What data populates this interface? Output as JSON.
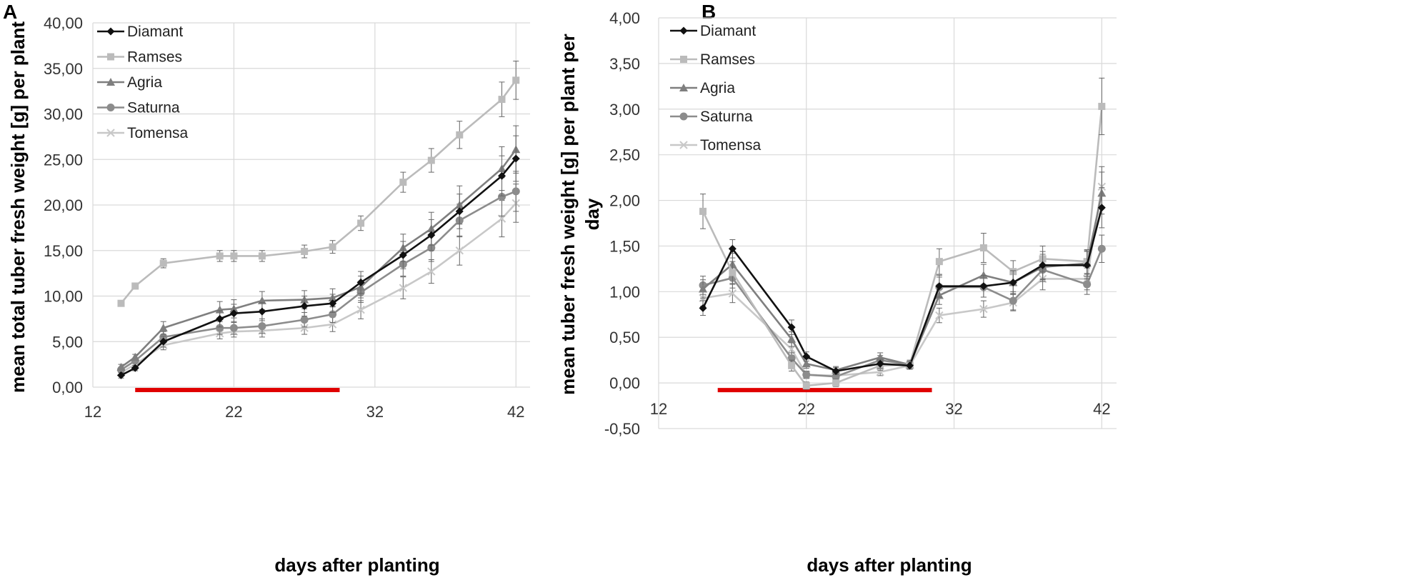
{
  "chart_data": [
    {
      "panel": "A",
      "type": "line",
      "title": "",
      "xlabel": "days after planting",
      "ylabel": "mean total tuber fresh weight [g] per plant",
      "xlim": [
        12,
        43
      ],
      "ylim": [
        0,
        40
      ],
      "xticks": [
        12,
        22,
        32,
        42
      ],
      "xtick_labels": [
        "12",
        "22",
        "32",
        "42"
      ],
      "yticks": [
        0,
        5,
        10,
        15,
        20,
        25,
        30,
        35,
        40
      ],
      "ytick_labels": [
        "0,00",
        "5,00",
        "10,00",
        "15,00",
        "20,00",
        "25,00",
        "30,00",
        "35,00",
        "40,00"
      ],
      "grid": true,
      "legend_position": "top-left",
      "bar_range": [
        15,
        29.5
      ],
      "x": [
        14,
        15,
        17,
        21,
        22,
        24,
        27,
        29,
        31,
        34,
        36,
        38,
        41,
        42
      ],
      "series": [
        {
          "name": "Diamant",
          "color": "#111111",
          "marker": "diamond",
          "values": [
            1.3,
            2.1,
            5.0,
            7.5,
            8.1,
            8.3,
            8.9,
            9.2,
            11.5,
            14.5,
            16.7,
            19.3,
            23.2,
            25.1
          ],
          "errors": [
            0.3,
            0.3,
            0.6,
            0.9,
            1.0,
            1.0,
            1.1,
            1.0,
            1.2,
            1.5,
            1.7,
            1.9,
            2.2,
            2.5
          ]
        },
        {
          "name": "Ramses",
          "color": "#bbbbbb",
          "marker": "square",
          "values": [
            9.2,
            11.1,
            13.6,
            14.4,
            14.4,
            14.4,
            14.9,
            15.4,
            18.0,
            22.5,
            24.9,
            27.7,
            31.6,
            33.7
          ],
          "errors": [
            0.3,
            0.3,
            0.5,
            0.6,
            0.6,
            0.6,
            0.7,
            0.7,
            0.8,
            1.1,
            1.3,
            1.5,
            1.9,
            2.1
          ]
        },
        {
          "name": "Agria",
          "color": "#7f7f7f",
          "marker": "triangle",
          "values": [
            2.2,
            3.3,
            6.5,
            8.5,
            8.6,
            9.5,
            9.6,
            9.8,
            11.0,
            15.3,
            17.4,
            20.0,
            24.0,
            26.1
          ],
          "errors": [
            0.3,
            0.3,
            0.7,
            0.9,
            1.0,
            1.0,
            1.0,
            1.0,
            1.2,
            1.5,
            1.8,
            2.1,
            2.4,
            2.6
          ]
        },
        {
          "name": "Saturna",
          "color": "#8c8c8c",
          "marker": "circle",
          "values": [
            1.9,
            2.9,
            5.5,
            6.5,
            6.5,
            6.7,
            7.4,
            8.0,
            10.4,
            13.5,
            15.3,
            18.3,
            20.9,
            21.5
          ],
          "errors": [
            0.3,
            0.3,
            0.6,
            0.7,
            0.7,
            0.8,
            0.8,
            0.9,
            1.1,
            1.3,
            1.5,
            1.8,
            2.1,
            2.2
          ]
        },
        {
          "name": "Tomensa",
          "color": "#c8c8c8",
          "marker": "x",
          "values": [
            1.6,
            2.5,
            4.6,
            5.9,
            6.1,
            6.2,
            6.5,
            6.9,
            8.5,
            10.9,
            12.7,
            15.0,
            18.5,
            20.2
          ],
          "errors": [
            0.3,
            0.3,
            0.5,
            0.6,
            0.6,
            0.7,
            0.7,
            0.8,
            1.0,
            1.2,
            1.3,
            1.6,
            2.0,
            2.1
          ]
        }
      ]
    },
    {
      "panel": "B",
      "type": "line",
      "title": "",
      "xlabel": "days after planting",
      "ylabel": "mean tuber fresh weight [g] per plant per day",
      "ylabel_lines": [
        "mean tuber fresh weight [g] per plant per",
        "day"
      ],
      "xlim": [
        12,
        43
      ],
      "ylim": [
        -0.5,
        4
      ],
      "xticks": [
        12,
        22,
        32,
        42
      ],
      "xtick_labels": [
        "12",
        "22",
        "32",
        "42"
      ],
      "yticks": [
        -0.5,
        0,
        0.5,
        1,
        1.5,
        2,
        2.5,
        3,
        3.5,
        4
      ],
      "ytick_labels": [
        "-0,50",
        "0,00",
        "0,50",
        "1,00",
        "1,50",
        "2,00",
        "2,50",
        "3,00",
        "3,50",
        "4,00"
      ],
      "grid": true,
      "legend_position": "top-left",
      "bar_range": [
        16,
        30.5
      ],
      "x": [
        15,
        17,
        21,
        22,
        24,
        27,
        29,
        31,
        34,
        36,
        38,
        41,
        42
      ],
      "series": [
        {
          "name": "Diamant",
          "color": "#111111",
          "marker": "diamond",
          "values": [
            0.82,
            1.47,
            0.61,
            0.29,
            0.13,
            0.21,
            0.19,
            1.06,
            1.06,
            1.1,
            1.29,
            1.29,
            1.92
          ],
          "errors": [
            0.08,
            0.1,
            0.08,
            0.05,
            0.04,
            0.05,
            0.04,
            0.12,
            0.12,
            0.13,
            0.15,
            0.15,
            0.22
          ]
        },
        {
          "name": "Ramses",
          "color": "#bbbbbb",
          "marker": "square",
          "values": [
            1.88,
            1.21,
            0.19,
            -0.03,
            0.0,
            0.19,
            0.2,
            1.33,
            1.48,
            1.22,
            1.36,
            1.33,
            3.03
          ],
          "errors": [
            0.19,
            0.12,
            0.06,
            0.04,
            0.04,
            0.05,
            0.05,
            0.14,
            0.16,
            0.12,
            0.14,
            0.13,
            0.31
          ]
        },
        {
          "name": "Agria",
          "color": "#7f7f7f",
          "marker": "triangle",
          "values": [
            1.03,
            1.3,
            0.48,
            0.21,
            0.14,
            0.28,
            0.2,
            0.96,
            1.18,
            1.1,
            1.27,
            1.31,
            2.08
          ],
          "errors": [
            0.1,
            0.12,
            0.08,
            0.05,
            0.04,
            0.05,
            0.04,
            0.1,
            0.12,
            0.12,
            0.14,
            0.14,
            0.23
          ]
        },
        {
          "name": "Saturna",
          "color": "#8c8c8c",
          "marker": "circle",
          "values": [
            1.07,
            1.15,
            0.27,
            0.09,
            0.07,
            0.25,
            0.2,
            1.05,
            1.05,
            0.9,
            1.24,
            1.08,
            1.47
          ],
          "errors": [
            0.1,
            0.11,
            0.06,
            0.04,
            0.04,
            0.05,
            0.04,
            0.11,
            0.11,
            0.1,
            0.13,
            0.11,
            0.15
          ]
        },
        {
          "name": "Tomensa",
          "color": "#c8c8c8",
          "marker": "x",
          "values": [
            0.93,
            0.98,
            0.37,
            0.09,
            0.08,
            0.12,
            0.19,
            0.74,
            0.81,
            0.88,
            1.14,
            1.14,
            2.15
          ],
          "errors": [
            0.09,
            0.1,
            0.07,
            0.04,
            0.04,
            0.04,
            0.04,
            0.08,
            0.09,
            0.09,
            0.12,
            0.12,
            0.22
          ]
        }
      ]
    }
  ]
}
